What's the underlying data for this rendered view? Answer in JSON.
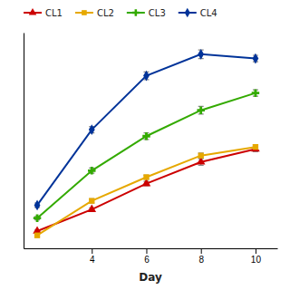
{
  "chart_data": {
    "type": "line",
    "x": [
      2,
      4,
      6,
      8,
      10
    ],
    "series": [
      {
        "name": "CL1",
        "color": "#cc0000",
        "marker": "triangle",
        "values": [
          0.08,
          0.18,
          0.3,
          0.4,
          0.46
        ],
        "errors": [
          0.005,
          0.008,
          0.01,
          0.015,
          0.012
        ]
      },
      {
        "name": "CL2",
        "color": "#e6a800",
        "marker": "square",
        "values": [
          0.06,
          0.22,
          0.33,
          0.43,
          0.47
        ],
        "errors": [
          0.004,
          0.01,
          0.009,
          0.012,
          0.01
        ]
      },
      {
        "name": "CL3",
        "color": "#33aa00",
        "marker": "plus",
        "values": [
          0.14,
          0.36,
          0.52,
          0.64,
          0.72
        ],
        "errors": [
          0.008,
          0.012,
          0.015,
          0.018,
          0.015
        ]
      },
      {
        "name": "CL4",
        "color": "#003399",
        "marker": "diamond",
        "values": [
          0.2,
          0.55,
          0.8,
          0.9,
          0.88
        ],
        "errors": [
          0.01,
          0.015,
          0.018,
          0.02,
          0.015
        ]
      }
    ],
    "x_label": "Day",
    "xlim": [
      1.5,
      10.8
    ],
    "ylim": [
      0.0,
      1.0
    ],
    "xticks": [
      4,
      6,
      8,
      10
    ],
    "tick_labels": "x",
    "legend": "top-left",
    "grid": false
  }
}
